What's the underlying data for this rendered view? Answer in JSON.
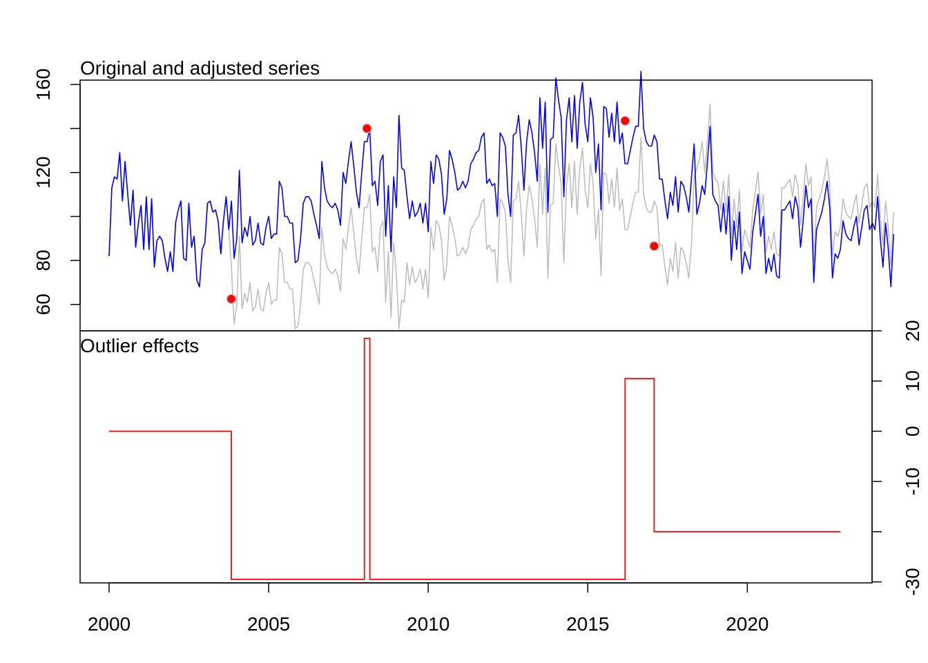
{
  "chart_data": [
    {
      "type": "line",
      "title": "Original and adjusted series",
      "xlabel": "",
      "ylabel": "",
      "xlim": [
        2000,
        2023
      ],
      "ylim": [
        48,
        162
      ],
      "x_ticks": [
        2000,
        2005,
        2010,
        2015,
        2020
      ],
      "x_tick_labels": [
        "2000",
        "2005",
        "2010",
        "2015",
        "2020"
      ],
      "y_ticks": [
        60,
        80,
        100,
        120,
        140,
        160
      ],
      "y_tick_labels": [
        "60",
        "80",
        "",
        "120",
        "",
        "160"
      ],
      "x_start": 2000.0,
      "x_step": 0.0833333,
      "colors": {
        "original": "#bebebe",
        "adjusted": "#0000ff",
        "outlier": "#ff0000",
        "outlier_edge": "#bebebe"
      },
      "series": [
        {
          "role": "original",
          "values": [
            82,
            113,
            118,
            117,
            129,
            107,
            125,
            110,
            96,
            112,
            86,
            97,
            105,
            85,
            109,
            85,
            108,
            77,
            89,
            91,
            89,
            81,
            75,
            84,
            75,
            97,
            103,
            107,
            81,
            80,
            106,
            86,
            91,
            71,
            68,
            85,
            88,
            106,
            107,
            102,
            103,
            98,
            83,
            98,
            109,
            94,
            77,
            51,
            60,
            91,
            58,
            65,
            61,
            70,
            57,
            59,
            67,
            58,
            57,
            65,
            70,
            60,
            62,
            62,
            86,
            83,
            70,
            70,
            67,
            67,
            49,
            50,
            60,
            76,
            79,
            79,
            77,
            71,
            66,
            60,
            95,
            83,
            77,
            75,
            74,
            76,
            73,
            66,
            90,
            85,
            95,
            104,
            93,
            81,
            74,
            90,
            104,
            104,
            110,
            84,
            86,
            75,
            95,
            98,
            61,
            84,
            54,
            88,
            74,
            49,
            62,
            61,
            79,
            69,
            77,
            70,
            72,
            76,
            67,
            76,
            63,
            95,
            85,
            98,
            96,
            89,
            71,
            78,
            100,
            96,
            90,
            82,
            83,
            86,
            83,
            86,
            94,
            96,
            99,
            100,
            106,
            108,
            85,
            87,
            84,
            85,
            70,
            108,
            106,
            102,
            80,
            70,
            107,
            108,
            116,
            101,
            82,
            104,
            114,
            108,
            99,
            86,
            124,
            101,
            122,
            72,
            105,
            106,
            133,
            123,
            115,
            79,
            114,
            124,
            104,
            125,
            101,
            122,
            131,
            112,
            104,
            124,
            115,
            90,
            103,
            73,
            120,
            119,
            106,
            117,
            104,
            122,
            103,
            108,
            94,
            94,
            100,
            106,
            111,
            111,
            136,
            110,
            104,
            102,
            102,
            107,
            104,
            87,
            87,
            77,
            69,
            81,
            75,
            88,
            72,
            86,
            84,
            79,
            72,
            88,
            118,
            122,
            126,
            134,
            120,
            135,
            151,
            120,
            117,
            115,
            103,
            116,
            102,
            119,
            90,
            108,
            95,
            112,
            84,
            94,
            90,
            86,
            103,
            111,
            120,
            101,
            110,
            84,
            91,
            85,
            93,
            83,
            82,
            113,
            113,
            115,
            117,
            109,
            119,
            114,
            96,
            108,
            124,
            114,
            118,
            80,
            104,
            108,
            112,
            118,
            126,
            114,
            82,
            93,
            91,
            95,
            108,
            102,
            100,
            99,
            105,
            110,
            97,
            105,
            113,
            115,
            104,
            107,
            104,
            119,
            100,
            87,
            107,
            95,
            78,
            102
          ]
        },
        {
          "role": "adjusted",
          "values": [
            82,
            113,
            118,
            117,
            129,
            107,
            125,
            110,
            96,
            112,
            86,
            97,
            105,
            85,
            109,
            85,
            108,
            77,
            89,
            91,
            89,
            81,
            75,
            84,
            75,
            97,
            103,
            107,
            81,
            80,
            106,
            86,
            91,
            71,
            68,
            85,
            88,
            106,
            107,
            102,
            103,
            98,
            83,
            98,
            109,
            94,
            107,
            81,
            90,
            121,
            88,
            95,
            91,
            100,
            87,
            89,
            97,
            88,
            87,
            95,
            100,
            90,
            92,
            92,
            116,
            113,
            100,
            100,
            97,
            97,
            79,
            80,
            90,
            106,
            109,
            109,
            107,
            101,
            96,
            90,
            125,
            113,
            107,
            105,
            104,
            106,
            103,
            96,
            120,
            115,
            125,
            134,
            123,
            111,
            104,
            120,
            134,
            134,
            140,
            114,
            116,
            105,
            125,
            128,
            91,
            114,
            84,
            118,
            104,
            146,
            122,
            121,
            109,
            99,
            107,
            100,
            102,
            106,
            97,
            106,
            93,
            125,
            115,
            128,
            126,
            119,
            101,
            108,
            130,
            126,
            120,
            112,
            113,
            116,
            113,
            116,
            124,
            126,
            129,
            130,
            136,
            138,
            115,
            117,
            114,
            115,
            100,
            138,
            136,
            132,
            110,
            100,
            137,
            138,
            146,
            131,
            112,
            134,
            144,
            138,
            129,
            116,
            154,
            131,
            152,
            102,
            135,
            136,
            163,
            153,
            145,
            109,
            144,
            154,
            134,
            155,
            131,
            152,
            161,
            142,
            134,
            154,
            145,
            120,
            133,
            103,
            150,
            149,
            136,
            147,
            134,
            152,
            133,
            138,
            124,
            124,
            130,
            136,
            141,
            141,
            166,
            140,
            134,
            132,
            132,
            137,
            134,
            117,
            117,
            107,
            99,
            111,
            105,
            118,
            102,
            116,
            114,
            109,
            102,
            118,
            133,
            101,
            106,
            114,
            110,
            125,
            141,
            110,
            107,
            105,
            93,
            106,
            92,
            109,
            80,
            98,
            85,
            102,
            74,
            84,
            80,
            76,
            93,
            101,
            110,
            91,
            100,
            74,
            81,
            75,
            83,
            73,
            72,
            103,
            103,
            105,
            107,
            99,
            109,
            104,
            86,
            98,
            114,
            104,
            108,
            70,
            94,
            98,
            102,
            108,
            116,
            104,
            72,
            83,
            81,
            85,
            98,
            92,
            90,
            89,
            95,
            100,
            87,
            95,
            103,
            105,
            94,
            97,
            94,
            109,
            90,
            77,
            97,
            85,
            68,
            92
          ]
        }
      ],
      "outliers": [
        {
          "x": 2003.83,
          "y": 62.5
        },
        {
          "x": 2008.08,
          "y": 140
        },
        {
          "x": 2016.17,
          "y": 143.5
        },
        {
          "x": 2017.08,
          "y": 86.5
        }
      ]
    },
    {
      "type": "line",
      "title": "Outlier effects",
      "xlabel": "",
      "ylabel": "",
      "xlim": [
        2000,
        2023
      ],
      "ylim": [
        -30.2,
        20
      ],
      "x_ticks": [
        2000,
        2005,
        2010,
        2015,
        2020
      ],
      "x_tick_labels": [
        "2000",
        "2005",
        "2010",
        "2015",
        "2020"
      ],
      "y_ticks": [
        -30,
        -20,
        -10,
        0,
        10,
        20
      ],
      "y_tick_labels": [
        "-30",
        "",
        "-10",
        "0",
        "10",
        "20"
      ],
      "color": "#ff0000",
      "step_points": [
        [
          2000.0,
          0
        ],
        [
          2003.83,
          0
        ],
        [
          2003.83,
          -29.5
        ],
        [
          2008.0,
          -29.5
        ],
        [
          2008.0,
          18.5
        ],
        [
          2008.17,
          18.5
        ],
        [
          2008.17,
          -29.5
        ],
        [
          2016.17,
          -29.5
        ],
        [
          2016.17,
          10.5
        ],
        [
          2017.08,
          10.5
        ],
        [
          2017.08,
          -20
        ],
        [
          2022.92,
          -20
        ]
      ]
    }
  ]
}
